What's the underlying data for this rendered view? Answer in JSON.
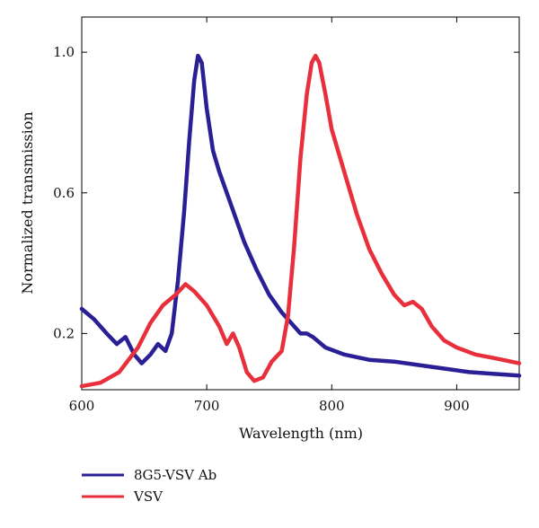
{
  "chart_data": {
    "type": "line",
    "title": "",
    "xlabel": "Wavelength (nm)",
    "ylabel": "Normalized transmission",
    "xlim": [
      600,
      950
    ],
    "ylim": [
      0.04,
      1.1
    ],
    "x_ticks": [
      600,
      700,
      800,
      900
    ],
    "x_tick_labels": [
      "600",
      "700",
      "800",
      "900"
    ],
    "y_ticks": [
      0.2,
      0.6,
      1.0
    ],
    "y_tick_labels": [
      "0.2",
      "0.6",
      "1.0"
    ],
    "grid": false,
    "legend_position": "bottom-left",
    "series": [
      {
        "name": "8G5-VSV Ab",
        "color": "#2b1f96",
        "points": [
          [
            600,
            0.27
          ],
          [
            610,
            0.24
          ],
          [
            620,
            0.2
          ],
          [
            628,
            0.17
          ],
          [
            635,
            0.19
          ],
          [
            642,
            0.14
          ],
          [
            648,
            0.115
          ],
          [
            655,
            0.14
          ],
          [
            661,
            0.17
          ],
          [
            667,
            0.15
          ],
          [
            672,
            0.2
          ],
          [
            677,
            0.35
          ],
          [
            682,
            0.55
          ],
          [
            686,
            0.75
          ],
          [
            690,
            0.92
          ],
          [
            693,
            0.99
          ],
          [
            696,
            0.97
          ],
          [
            700,
            0.84
          ],
          [
            705,
            0.72
          ],
          [
            710,
            0.66
          ],
          [
            720,
            0.56
          ],
          [
            730,
            0.46
          ],
          [
            740,
            0.38
          ],
          [
            750,
            0.31
          ],
          [
            760,
            0.26
          ],
          [
            770,
            0.22
          ],
          [
            775,
            0.2
          ],
          [
            780,
            0.2
          ],
          [
            785,
            0.19
          ],
          [
            795,
            0.16
          ],
          [
            810,
            0.14
          ],
          [
            830,
            0.125
          ],
          [
            850,
            0.12
          ],
          [
            870,
            0.11
          ],
          [
            890,
            0.1
          ],
          [
            910,
            0.09
          ],
          [
            930,
            0.085
          ],
          [
            950,
            0.08
          ]
        ]
      },
      {
        "name": "VSV",
        "color": "#e8303d",
        "points": [
          [
            600,
            0.05
          ],
          [
            615,
            0.06
          ],
          [
            630,
            0.09
          ],
          [
            645,
            0.16
          ],
          [
            655,
            0.23
          ],
          [
            665,
            0.28
          ],
          [
            675,
            0.31
          ],
          [
            683,
            0.34
          ],
          [
            690,
            0.32
          ],
          [
            700,
            0.28
          ],
          [
            710,
            0.22
          ],
          [
            716,
            0.17
          ],
          [
            721,
            0.2
          ],
          [
            726,
            0.16
          ],
          [
            732,
            0.09
          ],
          [
            738,
            0.065
          ],
          [
            745,
            0.075
          ],
          [
            752,
            0.12
          ],
          [
            760,
            0.15
          ],
          [
            765,
            0.25
          ],
          [
            770,
            0.45
          ],
          [
            775,
            0.7
          ],
          [
            780,
            0.88
          ],
          [
            784,
            0.97
          ],
          [
            787,
            0.99
          ],
          [
            790,
            0.97
          ],
          [
            795,
            0.88
          ],
          [
            800,
            0.78
          ],
          [
            810,
            0.66
          ],
          [
            820,
            0.54
          ],
          [
            830,
            0.44
          ],
          [
            840,
            0.37
          ],
          [
            850,
            0.31
          ],
          [
            858,
            0.28
          ],
          [
            865,
            0.29
          ],
          [
            872,
            0.27
          ],
          [
            880,
            0.22
          ],
          [
            890,
            0.18
          ],
          [
            900,
            0.16
          ],
          [
            915,
            0.14
          ],
          [
            930,
            0.13
          ],
          [
            950,
            0.115
          ]
        ]
      }
    ]
  }
}
